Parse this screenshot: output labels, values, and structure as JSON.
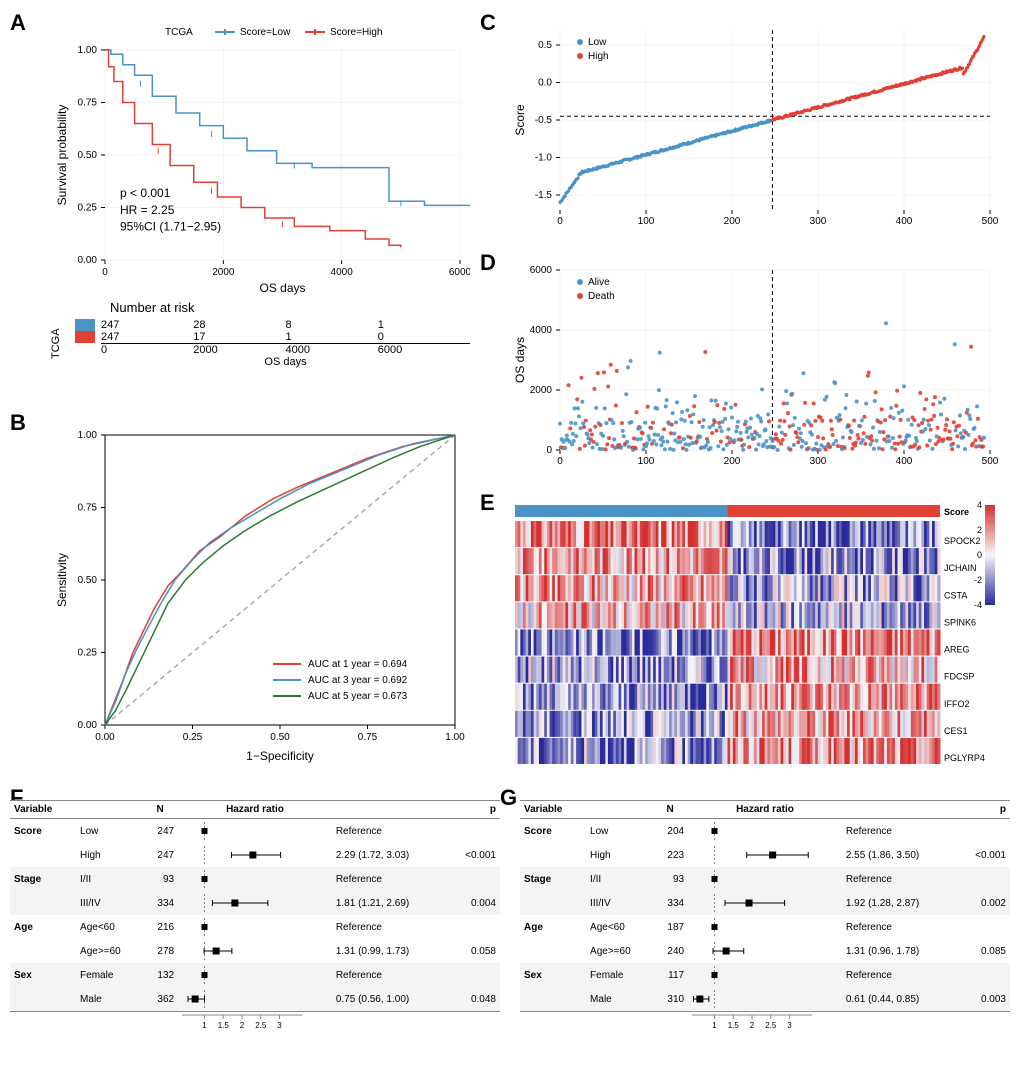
{
  "colors": {
    "low": "#4a93c5",
    "high": "#e04134",
    "alive": "#4a93c5",
    "death": "#e04134",
    "grid": "#e8e8e8",
    "diag": "#aaaaaa",
    "roc_1y": "#e04134",
    "roc_3y": "#4a93c5",
    "roc_5y": "#2a7a3a"
  },
  "panelA": {
    "legend_title": "TCGA",
    "legend_low": "Score=Low",
    "legend_high": "Score=High",
    "xlabel": "OS days",
    "ylabel": "Survival probability",
    "xmax": 6000,
    "stats": {
      "p": "p < 0.001",
      "hr": "HR = 2.25",
      "ci": "95%CI (1.71−2.95)"
    },
    "xticks": [
      0,
      2000,
      4000,
      6000
    ],
    "yticks": [
      0.0,
      0.25,
      0.5,
      0.75,
      1.0
    ],
    "km_low": [
      [
        0,
        1.0
      ],
      [
        100,
        0.98
      ],
      [
        300,
        0.93
      ],
      [
        500,
        0.88
      ],
      [
        800,
        0.78
      ],
      [
        1200,
        0.7
      ],
      [
        1600,
        0.64
      ],
      [
        2000,
        0.58
      ],
      [
        2400,
        0.52
      ],
      [
        2900,
        0.46
      ],
      [
        3500,
        0.44
      ],
      [
        4200,
        0.44
      ],
      [
        4800,
        0.28
      ],
      [
        5400,
        0.26
      ],
      [
        6200,
        0.15
      ]
    ],
    "km_high": [
      [
        0,
        1.0
      ],
      [
        60,
        0.92
      ],
      [
        150,
        0.85
      ],
      [
        300,
        0.75
      ],
      [
        500,
        0.65
      ],
      [
        800,
        0.55
      ],
      [
        1100,
        0.45
      ],
      [
        1500,
        0.37
      ],
      [
        1900,
        0.3
      ],
      [
        2300,
        0.25
      ],
      [
        2700,
        0.2
      ],
      [
        3200,
        0.16
      ],
      [
        3800,
        0.14
      ],
      [
        4400,
        0.1
      ],
      [
        4800,
        0.07
      ],
      [
        5000,
        0.06
      ]
    ],
    "risk_title": "Number at risk",
    "risk_group_label": "TCGA",
    "risk_xticks": [
      0,
      2000,
      4000,
      6000
    ],
    "risk_low": [
      247,
      28,
      8,
      1
    ],
    "risk_high": [
      247,
      17,
      1,
      0
    ]
  },
  "panelB": {
    "xlabel": "1−Specificity",
    "ylabel": "Sensitivity",
    "ticks": [
      0.0,
      0.25,
      0.5,
      0.75,
      1.0
    ],
    "legend": [
      {
        "color_key": "roc_1y",
        "label": "AUC at 1 year = 0.694"
      },
      {
        "color_key": "roc_3y",
        "label": "AUC at 3 year = 0.692"
      },
      {
        "color_key": "roc_5y",
        "label": "AUC at 5 year = 0.673"
      }
    ],
    "roc_1y": [
      [
        0,
        0
      ],
      [
        0.02,
        0.06
      ],
      [
        0.05,
        0.15
      ],
      [
        0.08,
        0.25
      ],
      [
        0.1,
        0.3
      ],
      [
        0.14,
        0.4
      ],
      [
        0.18,
        0.48
      ],
      [
        0.22,
        0.53
      ],
      [
        0.27,
        0.6
      ],
      [
        0.33,
        0.65
      ],
      [
        0.4,
        0.72
      ],
      [
        0.48,
        0.78
      ],
      [
        0.55,
        0.82
      ],
      [
        0.65,
        0.87
      ],
      [
        0.75,
        0.92
      ],
      [
        0.85,
        0.96
      ],
      [
        1,
        1
      ]
    ],
    "roc_3y": [
      [
        0,
        0
      ],
      [
        0.03,
        0.08
      ],
      [
        0.06,
        0.18
      ],
      [
        0.09,
        0.26
      ],
      [
        0.12,
        0.33
      ],
      [
        0.16,
        0.42
      ],
      [
        0.2,
        0.5
      ],
      [
        0.25,
        0.57
      ],
      [
        0.3,
        0.63
      ],
      [
        0.36,
        0.68
      ],
      [
        0.43,
        0.73
      ],
      [
        0.5,
        0.78
      ],
      [
        0.58,
        0.83
      ],
      [
        0.68,
        0.88
      ],
      [
        0.78,
        0.93
      ],
      [
        0.88,
        0.97
      ],
      [
        1,
        1
      ]
    ],
    "roc_5y": [
      [
        0,
        0
      ],
      [
        0.03,
        0.05
      ],
      [
        0.06,
        0.12
      ],
      [
        0.1,
        0.22
      ],
      [
        0.14,
        0.32
      ],
      [
        0.18,
        0.42
      ],
      [
        0.23,
        0.5
      ],
      [
        0.28,
        0.56
      ],
      [
        0.34,
        0.62
      ],
      [
        0.4,
        0.67
      ],
      [
        0.47,
        0.72
      ],
      [
        0.55,
        0.77
      ],
      [
        0.64,
        0.82
      ],
      [
        0.73,
        0.87
      ],
      [
        0.82,
        0.92
      ],
      [
        0.9,
        0.96
      ],
      [
        1,
        1
      ]
    ]
  },
  "panelC": {
    "ylabel": "Score",
    "xmax": 500,
    "xticks": [
      0,
      100,
      200,
      300,
      400,
      500
    ],
    "yticks": [
      -1.5,
      -1.0,
      -0.5,
      0.0,
      0.5
    ],
    "cutoff_x": 247,
    "cutoff_y": -0.45,
    "legend_low": "Low",
    "legend_high": "High",
    "n_low": 247,
    "n_high": 247
  },
  "panelD": {
    "ylabel": "OS days",
    "xmax": 500,
    "ymax": 6000,
    "xticks": [
      0,
      100,
      200,
      300,
      400,
      500
    ],
    "yticks": [
      0,
      2000,
      4000,
      6000
    ],
    "cutoff_x": 247,
    "legend_alive": "Alive",
    "legend_death": "Death",
    "n_points": 494
  },
  "panelE": {
    "score_label": "Score",
    "genes": [
      "SPOCK2",
      "JCHAIN",
      "CSTA",
      "SPINK6",
      "AREG",
      "FDCSP",
      "IFFO2",
      "CES1",
      "PGLYRP4"
    ],
    "scale_ticks": [
      -4,
      -2,
      0,
      2,
      4
    ],
    "n_cols": 494,
    "gene_trend": {
      "SPOCK2": -0.6,
      "JCHAIN": -0.5,
      "CSTA": -0.4,
      "SPINK6": -0.3,
      "AREG": 0.6,
      "FDCSP": 0.4,
      "IFFO2": 0.5,
      "CES1": 0.45,
      "PGLYRP4": 0.5
    },
    "color_low": "#2a2a9a",
    "color_mid": "#f5f5f8",
    "color_high": "#d43030"
  },
  "panelF": {
    "headers": [
      "Variable",
      "",
      "N",
      "Hazard ratio",
      "",
      "p"
    ],
    "xscale_ticks": [
      1,
      1.5,
      2,
      2.5,
      3
    ],
    "rows": [
      {
        "var": "Score",
        "level": "Low",
        "n": 247,
        "ref": true
      },
      {
        "var": "",
        "level": "High",
        "n": 247,
        "hr": 2.29,
        "lo": 1.72,
        "hi": 3.03,
        "est": "2.29 (1.72, 3.03)",
        "p": "<0.001"
      },
      {
        "var": "Stage",
        "level": "I/II",
        "n": 93,
        "ref": true
      },
      {
        "var": "",
        "level": "III/IV",
        "n": 334,
        "hr": 1.81,
        "lo": 1.21,
        "hi": 2.69,
        "est": "1.81 (1.21, 2.69)",
        "p": "0.004"
      },
      {
        "var": "Age",
        "level": "Age<60",
        "n": 216,
        "ref": true
      },
      {
        "var": "",
        "level": "Age>=60",
        "n": 278,
        "hr": 1.31,
        "lo": 0.99,
        "hi": 1.73,
        "est": "1.31 (0.99, 1.73)",
        "p": "0.058"
      },
      {
        "var": "Sex",
        "level": "Female",
        "n": 132,
        "ref": true
      },
      {
        "var": "",
        "level": "Male",
        "n": 362,
        "hr": 0.75,
        "lo": 0.56,
        "hi": 1.0,
        "est": "0.75 (0.56, 1.00)",
        "p": "0.048"
      }
    ]
  },
  "panelG": {
    "headers": [
      "Variable",
      "",
      "N",
      "Hazard ratio",
      "",
      "p"
    ],
    "xscale_ticks": [
      1,
      1.5,
      2,
      2.5,
      3
    ],
    "rows": [
      {
        "var": "Score",
        "level": "Low",
        "n": 204,
        "ref": true
      },
      {
        "var": "",
        "level": "High",
        "n": 223,
        "hr": 2.55,
        "lo": 1.86,
        "hi": 3.5,
        "est": "2.55 (1.86, 3.50)",
        "p": "<0.001"
      },
      {
        "var": "Stage",
        "level": "I/II",
        "n": 93,
        "ref": true
      },
      {
        "var": "",
        "level": "III/IV",
        "n": 334,
        "hr": 1.92,
        "lo": 1.28,
        "hi": 2.87,
        "est": "1.92 (1.28, 2.87)",
        "p": "0.002"
      },
      {
        "var": "Age",
        "level": "Age<60",
        "n": 187,
        "ref": true
      },
      {
        "var": "",
        "level": "Age>=60",
        "n": 240,
        "hr": 1.31,
        "lo": 0.96,
        "hi": 1.78,
        "est": "1.31 (0.96, 1.78)",
        "p": "0.085"
      },
      {
        "var": "Sex",
        "level": "Female",
        "n": 117,
        "ref": true
      },
      {
        "var": "",
        "level": "Male",
        "n": 310,
        "hr": 0.61,
        "lo": 0.44,
        "hi": 0.85,
        "est": "0.61 (0.44, 0.85)",
        "p": "0.003"
      }
    ]
  }
}
